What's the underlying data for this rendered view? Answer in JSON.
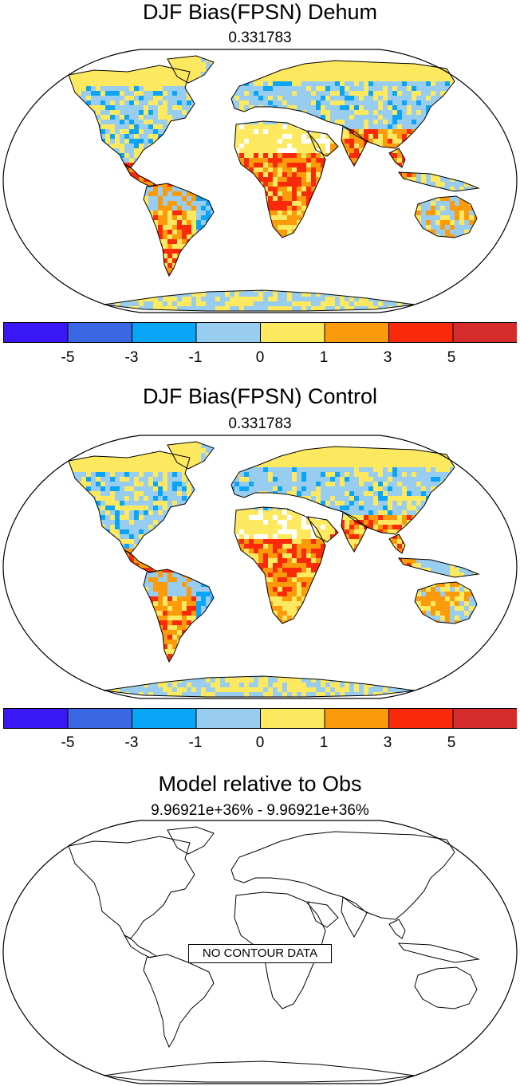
{
  "panels": [
    {
      "title": "DJF Bias(FPSN) Dehum",
      "subtitle": "0.331783",
      "has_data": true,
      "colorbar": {
        "colors": [
          "#3a17f5",
          "#3c67e4",
          "#0aa5f7",
          "#98cdef",
          "#fde95f",
          "#fb9a0a",
          "#f92a0a",
          "#d62b2b"
        ],
        "labels": [
          "-5",
          "-3",
          "-1",
          "0",
          "1",
          "3",
          "5"
        ]
      }
    },
    {
      "title": "DJF Bias(FPSN) Control",
      "subtitle": "0.331783",
      "has_data": true,
      "colorbar": {
        "colors": [
          "#3a17f5",
          "#3c67e4",
          "#0aa5f7",
          "#98cdef",
          "#fde95f",
          "#fb9a0a",
          "#f92a0a",
          "#d62b2b"
        ],
        "labels": [
          "-5",
          "-3",
          "-1",
          "0",
          "1",
          "3",
          "5"
        ]
      }
    },
    {
      "title": "Model relative to Obs",
      "subtitle": "9.96921e+36% - 9.96921e+36%",
      "has_data": false,
      "no_data_label": "NO CONTOUR DATA"
    }
  ]
}
